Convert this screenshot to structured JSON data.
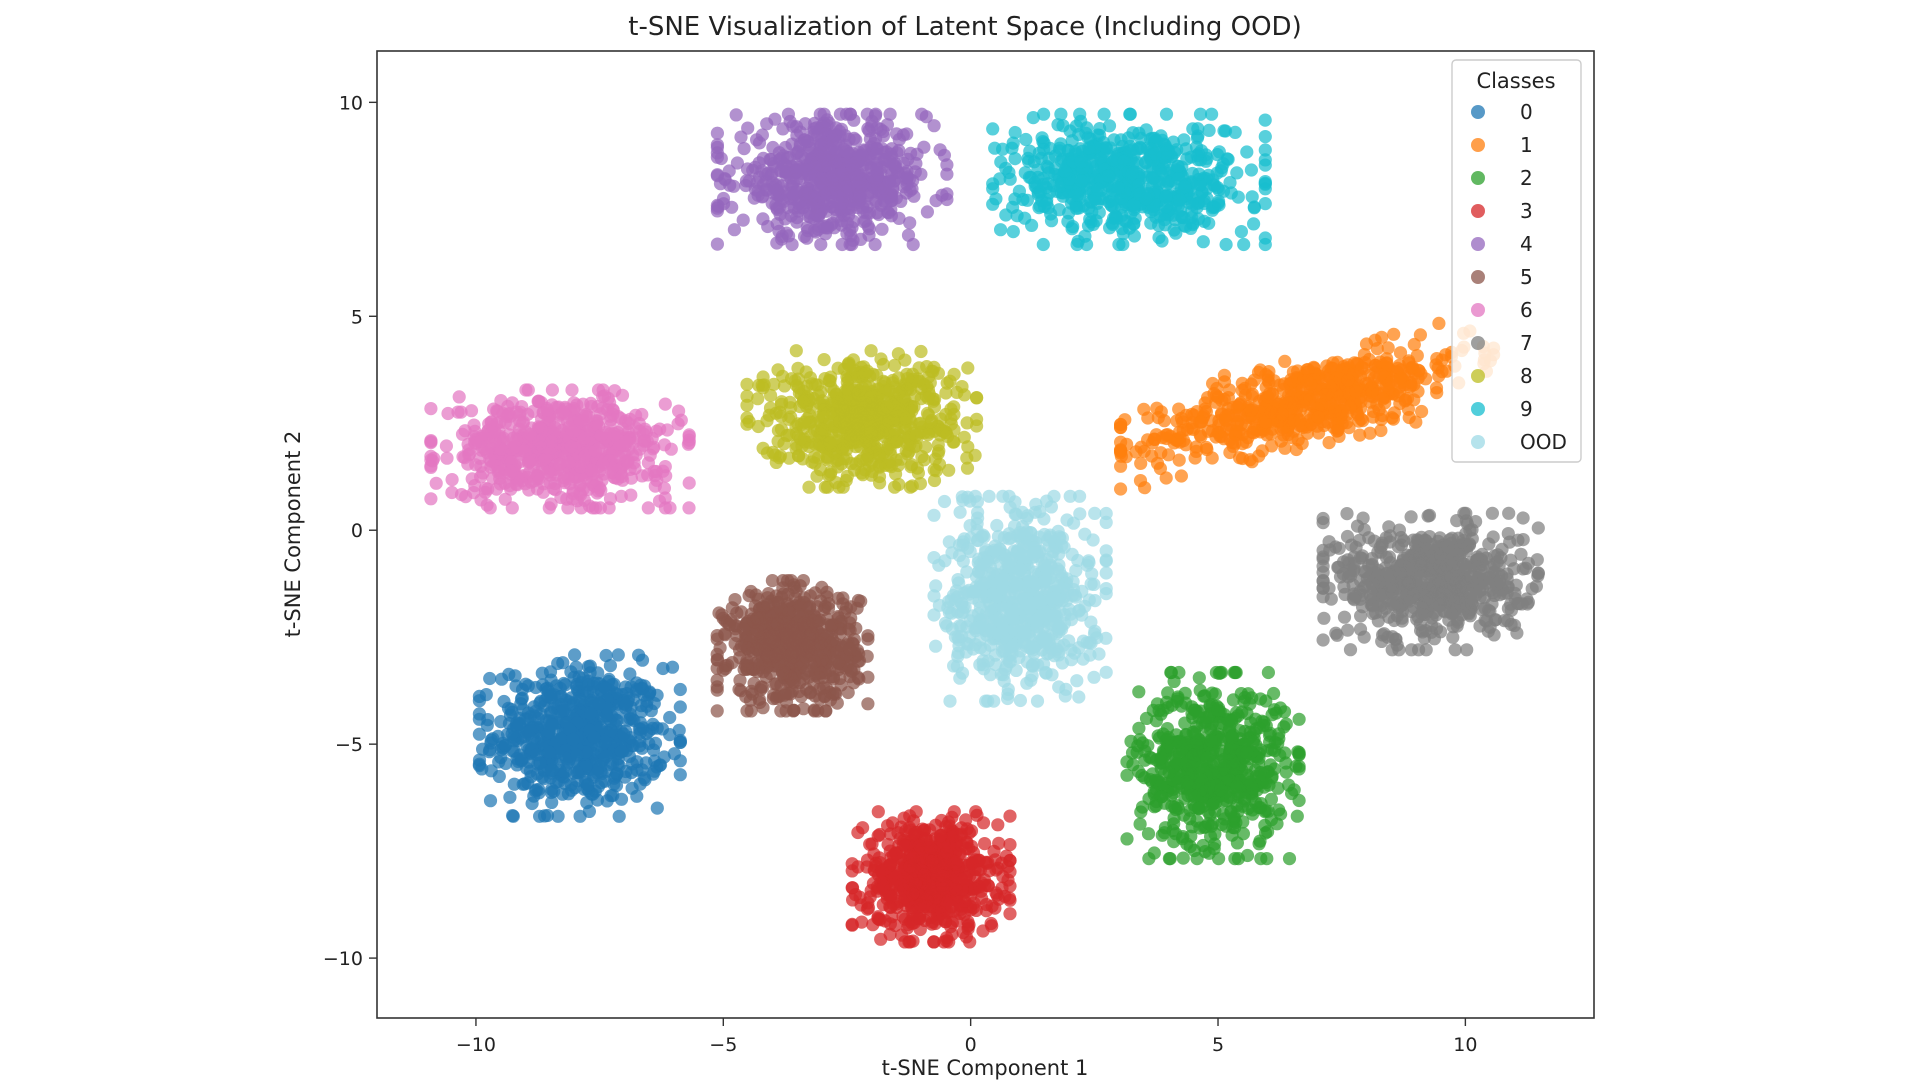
{
  "chart_data": {
    "type": "scatter",
    "title": "t-SNE Visualization of Latent Space (Including OOD)",
    "xlabel": "t-SNE Component 1",
    "ylabel": "t-SNE Component 2",
    "xlim": [
      -12,
      12.6
    ],
    "ylim": [
      -11.4,
      11.2
    ],
    "xticks": [
      -10,
      -5,
      0,
      5,
      10
    ],
    "yticks": [
      -10,
      -5,
      0,
      5,
      10
    ],
    "grid": false,
    "legend": {
      "title": "Classes",
      "placement": "top-right"
    },
    "series": [
      {
        "name": "0",
        "color": "#1f77b4",
        "center": [
          -7.9,
          -4.8
        ],
        "spread": [
          1.4,
          1.3
        ]
      },
      {
        "name": "1",
        "color": "#ff7f0e",
        "center": [
          6.8,
          3.0
        ],
        "spread": [
          2.6,
          0.75
        ],
        "tilt": 0.28
      },
      {
        "name": "2",
        "color": "#2ca02c",
        "center": [
          4.9,
          -5.5
        ],
        "spread": [
          1.2,
          1.5
        ]
      },
      {
        "name": "3",
        "color": "#d62728",
        "center": [
          -0.8,
          -8.1
        ],
        "spread": [
          1.1,
          1.05
        ]
      },
      {
        "name": "4",
        "color": "#9467bd",
        "center": [
          -2.8,
          8.2
        ],
        "spread": [
          1.6,
          1.05
        ]
      },
      {
        "name": "5",
        "color": "#8c564b",
        "center": [
          -3.6,
          -2.7
        ],
        "spread": [
          1.05,
          1.05
        ]
      },
      {
        "name": "6",
        "color": "#e377c2",
        "center": [
          -8.3,
          1.9
        ],
        "spread": [
          1.8,
          0.95
        ]
      },
      {
        "name": "7",
        "color": "#7f7f7f",
        "center": [
          9.3,
          -1.2
        ],
        "spread": [
          1.5,
          1.1
        ]
      },
      {
        "name": "8",
        "color": "#bcbd22",
        "center": [
          -2.2,
          2.6
        ],
        "spread": [
          1.6,
          1.1
        ]
      },
      {
        "name": "9",
        "color": "#17becf",
        "center": [
          3.2,
          8.2
        ],
        "spread": [
          1.9,
          1.05
        ]
      },
      {
        "name": "OOD",
        "color": "#9edae5",
        "center": [
          1.0,
          -1.6
        ],
        "spread": [
          1.2,
          1.65
        ]
      }
    ]
  }
}
